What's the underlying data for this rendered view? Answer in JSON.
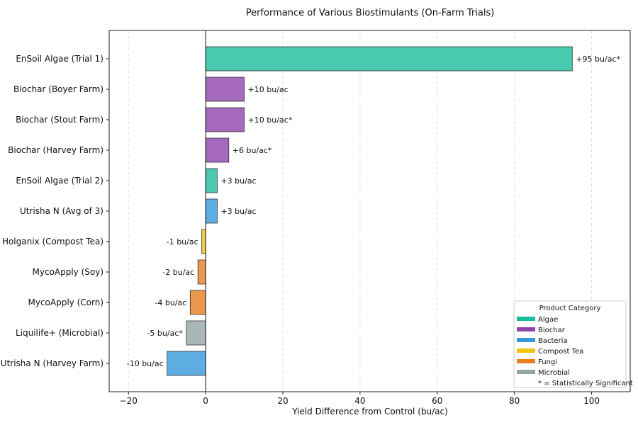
{
  "chart_data": {
    "type": "bar",
    "orientation": "horizontal",
    "title": "Performance of Various Biostimulants (On-Farm Trials)",
    "xlabel": "Yield Difference from Control (bu/ac)",
    "ylabel": "",
    "xlim": [
      -25,
      110
    ],
    "xticks": [
      -20,
      0,
      20,
      40,
      60,
      80,
      100
    ],
    "xtick_labels": [
      "−20",
      "0",
      "20",
      "40",
      "60",
      "80",
      "100"
    ],
    "grid": "vertical dashed",
    "legend_position": "bottom-right",
    "legend_title": "Product Category",
    "legend_note": "* = Statistically Significant",
    "categories_legend": [
      {
        "name": "Algae",
        "color": "#1abc9c"
      },
      {
        "name": "Biochar",
        "color": "#8e44ad"
      },
      {
        "name": "Bacteria",
        "color": "#3498db"
      },
      {
        "name": "Compost Tea",
        "color": "#f1c40f"
      },
      {
        "name": "Fungi",
        "color": "#e67e22"
      },
      {
        "name": "Microbial",
        "color": "#95a5a6"
      }
    ],
    "bars": [
      {
        "label": "EnSoil Algae (Trial 1)",
        "value": 95,
        "category": "Algae",
        "text": "+95 bu/ac*"
      },
      {
        "label": "Biochar (Boyer Farm)",
        "value": 10,
        "category": "Biochar",
        "text": "+10 bu/ac"
      },
      {
        "label": "Biochar (Stout Farm)",
        "value": 10,
        "category": "Biochar",
        "text": "+10 bu/ac*"
      },
      {
        "label": "Biochar (Harvey Farm)",
        "value": 6,
        "category": "Biochar",
        "text": "+6 bu/ac*"
      },
      {
        "label": "EnSoil Algae (Trial 2)",
        "value": 3,
        "category": "Algae",
        "text": "+3 bu/ac"
      },
      {
        "label": "Utrisha N (Avg of 3)",
        "value": 3,
        "category": "Bacteria",
        "text": "+3 bu/ac"
      },
      {
        "label": "Holganix (Compost Tea)",
        "value": -1,
        "category": "Compost Tea",
        "text": "-1 bu/ac"
      },
      {
        "label": "MycoApply (Soy)",
        "value": -2,
        "category": "Fungi",
        "text": "-2 bu/ac"
      },
      {
        "label": "MycoApply (Corn)",
        "value": -4,
        "category": "Fungi",
        "text": "-4 bu/ac"
      },
      {
        "label": "Liquilife+ (Microbial)",
        "value": -5,
        "category": "Microbial",
        "text": "-5 bu/ac*"
      },
      {
        "label": "Utrisha N (Harvey Farm)",
        "value": -10,
        "category": "Bacteria",
        "text": "-10 bu/ac"
      }
    ]
  }
}
